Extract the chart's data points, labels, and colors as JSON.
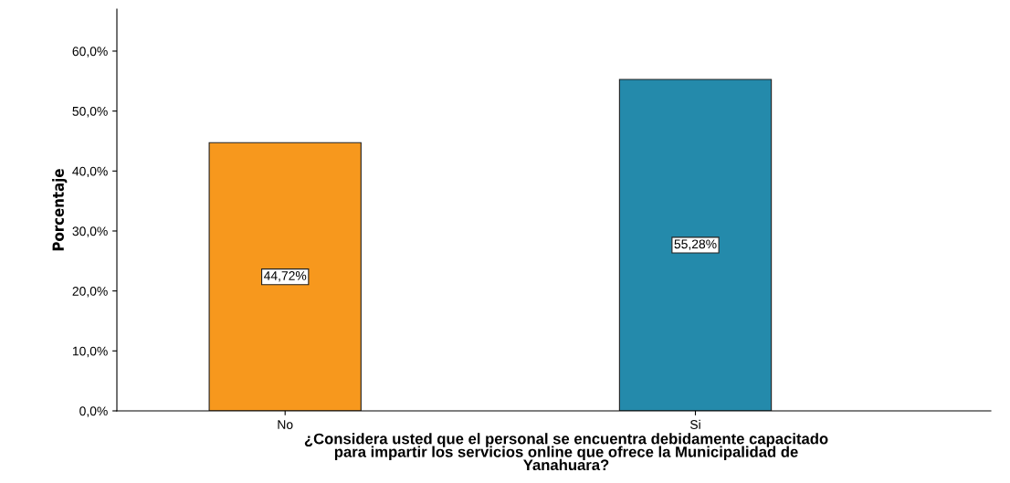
{
  "chart_data": {
    "type": "bar",
    "xlabel": "¿Considera usted que el personal se encuentra debidamente capacitado\npara impartir los servicios online que ofrece la Municipalidad de\nYanahuara?",
    "ylabel": "Porcentaje",
    "categories": [
      "No",
      "Si"
    ],
    "values": [
      44.72,
      55.28
    ],
    "colors": [
      "#f7981d",
      "#248aab"
    ],
    "value_labels": [
      "44,72%",
      "55,28%"
    ],
    "ylim": [
      0,
      67
    ],
    "yticks": [
      {
        "value": 0,
        "label": "0,0%"
      },
      {
        "value": 10,
        "label": "10,0%"
      },
      {
        "value": 20,
        "label": "20,0%"
      },
      {
        "value": 30,
        "label": "30,0%"
      },
      {
        "value": 40,
        "label": "40,0%"
      },
      {
        "value": 50,
        "label": "50,0%"
      },
      {
        "value": 60,
        "label": "60,0%"
      }
    ],
    "grid": false,
    "legend": false
  }
}
